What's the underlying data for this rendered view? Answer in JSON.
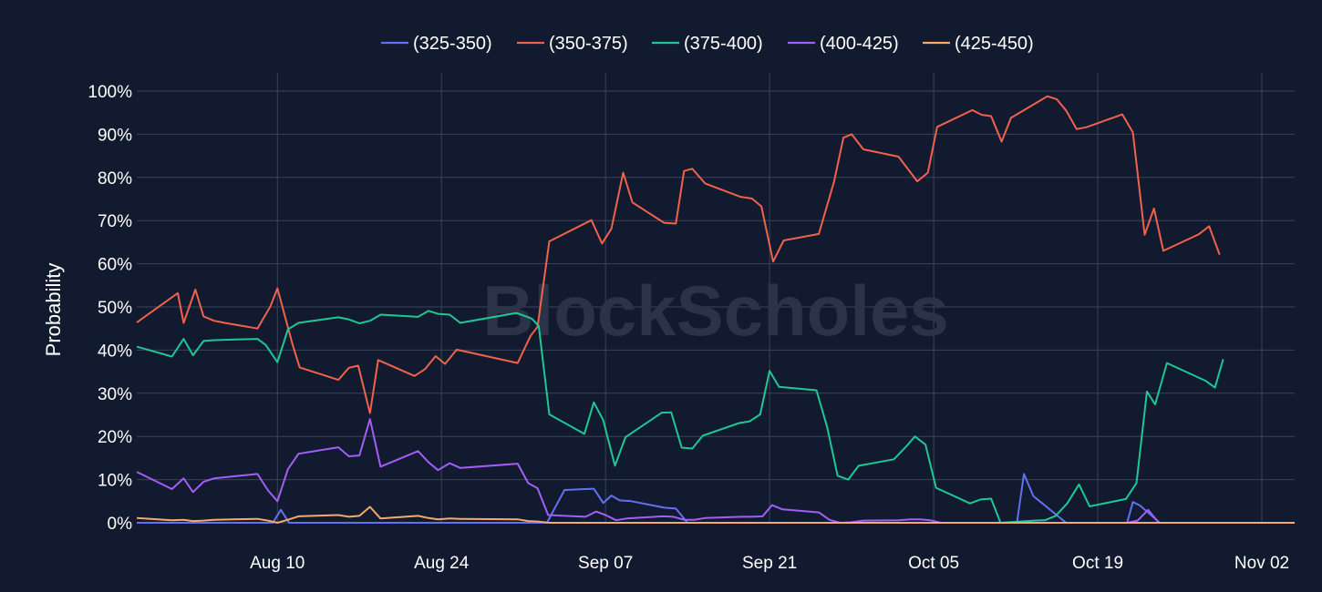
{
  "chart_data": {
    "type": "line",
    "ylabel": "Probability",
    "ylim": [
      0,
      100
    ],
    "y_tick_values": [
      0,
      10,
      20,
      30,
      40,
      50,
      60,
      70,
      80,
      90,
      100
    ],
    "y_tick_labels": [
      "0%",
      "10%",
      "20%",
      "30%",
      "40%",
      "50%",
      "60%",
      "70%",
      "80%",
      "90%",
      "100%"
    ],
    "x_range": [
      "Jul 29",
      "Nov 05"
    ],
    "x_ticks": [
      {
        "label": "Aug 10",
        "day": 12
      },
      {
        "label": "Aug 24",
        "day": 26
      },
      {
        "label": "Sep 07",
        "day": 40
      },
      {
        "label": "Sep 21",
        "day": 54
      },
      {
        "label": "Oct 05",
        "day": 68
      },
      {
        "label": "Oct 19",
        "day": 82
      },
      {
        "label": "Nov 02",
        "day": 96
      }
    ],
    "x_min_day": 0,
    "x_max_day": 98.8,
    "legend_position": "top-center",
    "watermark": "BlockScholes",
    "series": [
      {
        "name": "(325-350)",
        "color": "#6370f0",
        "points": [
          [
            0,
            0
          ],
          [
            11.6,
            0
          ],
          [
            12.3,
            3.0
          ],
          [
            13.0,
            0
          ],
          [
            26,
            0
          ],
          [
            34,
            0
          ],
          [
            35,
            0
          ],
          [
            36.5,
            7.6
          ],
          [
            39.0,
            7.9
          ],
          [
            39.8,
            4.6
          ],
          [
            40.5,
            6.3
          ],
          [
            41.2,
            5.2
          ],
          [
            42.2,
            5.0
          ],
          [
            45.0,
            3.5
          ],
          [
            46.0,
            3.3
          ],
          [
            47,
            0
          ],
          [
            74,
            0
          ],
          [
            75.1,
            0
          ],
          [
            75.7,
            11.3
          ],
          [
            76.5,
            6.2
          ],
          [
            79.3,
            0
          ],
          [
            82.6,
            0
          ],
          [
            83.6,
            0
          ],
          [
            84.5,
            0
          ],
          [
            85.0,
            4.8
          ],
          [
            85.6,
            4.0
          ],
          [
            87.3,
            0
          ],
          [
            98.8,
            0
          ]
        ]
      },
      {
        "name": "(350-375)",
        "color": "#f0624b",
        "points": [
          [
            0,
            46.4
          ],
          [
            3.5,
            53.2
          ],
          [
            4.0,
            46.3
          ],
          [
            5.0,
            54.0
          ],
          [
            5.7,
            47.8
          ],
          [
            6.6,
            46.8
          ],
          [
            7.5,
            46.3
          ],
          [
            10.3,
            45.0
          ],
          [
            11.4,
            50.1
          ],
          [
            12.0,
            54.3
          ],
          [
            13.3,
            41.2
          ],
          [
            13.9,
            36.0
          ],
          [
            17.2,
            33.1
          ],
          [
            18.1,
            35.9
          ],
          [
            18.9,
            36.4
          ],
          [
            19.9,
            25.4
          ],
          [
            20.6,
            37.7
          ],
          [
            23.7,
            34.0
          ],
          [
            24.6,
            35.6
          ],
          [
            25.5,
            38.6
          ],
          [
            26.3,
            36.8
          ],
          [
            27.3,
            40.1
          ],
          [
            32.5,
            37.0
          ],
          [
            33.6,
            43.3
          ],
          [
            34.2,
            45.4
          ],
          [
            35.2,
            65.2
          ],
          [
            38.8,
            70.1
          ],
          [
            39.7,
            64.7
          ],
          [
            40.5,
            68.1
          ],
          [
            41.5,
            81.1
          ],
          [
            42.3,
            74.2
          ],
          [
            45.0,
            69.5
          ],
          [
            46.0,
            69.3
          ],
          [
            46.7,
            81.5
          ],
          [
            47.4,
            82.0
          ],
          [
            48.5,
            78.6
          ],
          [
            51.5,
            75.5
          ],
          [
            52.5,
            75.1
          ],
          [
            53.3,
            73.3
          ],
          [
            54.3,
            60.5
          ],
          [
            55.2,
            65.4
          ],
          [
            58.2,
            66.9
          ],
          [
            59.5,
            79.0
          ],
          [
            60.3,
            89.2
          ],
          [
            61.0,
            90.0
          ],
          [
            62.0,
            86.5
          ],
          [
            65.0,
            84.8
          ],
          [
            66.6,
            79.1
          ],
          [
            67.5,
            81.1
          ],
          [
            68.3,
            91.7
          ],
          [
            71.3,
            95.6
          ],
          [
            72.1,
            94.5
          ],
          [
            72.9,
            94.2
          ],
          [
            73.8,
            88.3
          ],
          [
            74.6,
            93.8
          ],
          [
            77.7,
            98.8
          ],
          [
            78.5,
            98.1
          ],
          [
            79.3,
            95.5
          ],
          [
            80.2,
            91.2
          ],
          [
            81.0,
            91.6
          ],
          [
            84.1,
            94.6
          ],
          [
            85.0,
            90.4
          ],
          [
            86.0,
            66.7
          ],
          [
            86.8,
            72.8
          ],
          [
            87.6,
            63.0
          ],
          [
            90.6,
            66.8
          ],
          [
            91.5,
            68.7
          ],
          [
            92.4,
            62.1
          ]
        ]
      },
      {
        "name": "(375-400)",
        "color": "#1fc796",
        "points": [
          [
            0,
            40.8
          ],
          [
            3.0,
            38.5
          ],
          [
            4.0,
            42.6
          ],
          [
            4.8,
            38.8
          ],
          [
            5.7,
            42.1
          ],
          [
            6.6,
            42.3
          ],
          [
            10.3,
            42.6
          ],
          [
            11.0,
            41.2
          ],
          [
            12.0,
            37.2
          ],
          [
            12.9,
            44.8
          ],
          [
            13.8,
            46.3
          ],
          [
            17.2,
            47.6
          ],
          [
            18.1,
            47.1
          ],
          [
            19.0,
            46.2
          ],
          [
            19.9,
            46.8
          ],
          [
            20.8,
            48.2
          ],
          [
            24.0,
            47.7
          ],
          [
            24.9,
            49.1
          ],
          [
            25.7,
            48.4
          ],
          [
            26.7,
            48.2
          ],
          [
            27.6,
            46.3
          ],
          [
            32.4,
            48.6
          ],
          [
            33.7,
            47.3
          ],
          [
            34.3,
            45.6
          ],
          [
            35.2,
            25.1
          ],
          [
            38.2,
            20.6
          ],
          [
            39.0,
            27.9
          ],
          [
            39.8,
            23.8
          ],
          [
            40.8,
            13.2
          ],
          [
            41.7,
            19.8
          ],
          [
            44.8,
            25.5
          ],
          [
            45.6,
            25.6
          ],
          [
            46.5,
            17.4
          ],
          [
            47.4,
            17.2
          ],
          [
            48.3,
            20.2
          ],
          [
            51.4,
            23.1
          ],
          [
            52.3,
            23.5
          ],
          [
            53.2,
            25.1
          ],
          [
            54.0,
            35.2
          ],
          [
            54.8,
            31.5
          ],
          [
            58.0,
            30.7
          ],
          [
            58.9,
            22.3
          ],
          [
            59.8,
            10.9
          ],
          [
            60.7,
            10.0
          ],
          [
            61.6,
            13.2
          ],
          [
            64.6,
            14.7
          ],
          [
            65.6,
            17.5
          ],
          [
            66.4,
            20.0
          ],
          [
            67.3,
            18.1
          ],
          [
            68.2,
            8.1
          ],
          [
            71.1,
            4.5
          ],
          [
            72.0,
            5.4
          ],
          [
            72.9,
            5.6
          ],
          [
            73.7,
            0
          ],
          [
            76.6,
            0.5
          ],
          [
            77.5,
            0.6
          ],
          [
            78.4,
            1.6
          ],
          [
            79.4,
            4.5
          ],
          [
            80.4,
            8.9
          ],
          [
            81.3,
            3.8
          ],
          [
            84.4,
            5.5
          ],
          [
            85.3,
            9.2
          ],
          [
            86.2,
            30.4
          ],
          [
            86.9,
            27.4
          ],
          [
            87.9,
            37.0
          ],
          [
            91.2,
            32.9
          ],
          [
            92.0,
            31.3
          ],
          [
            92.7,
            37.9
          ]
        ]
      },
      {
        "name": "(400-425)",
        "color": "#a25ef6",
        "points": [
          [
            0,
            11.8
          ],
          [
            3.0,
            7.8
          ],
          [
            4.0,
            10.3
          ],
          [
            4.8,
            7.1
          ],
          [
            5.7,
            9.5
          ],
          [
            6.6,
            10.3
          ],
          [
            10.3,
            11.3
          ],
          [
            11.2,
            7.5
          ],
          [
            12.0,
            5.0
          ],
          [
            12.9,
            12.4
          ],
          [
            13.8,
            16.0
          ],
          [
            17.2,
            17.5
          ],
          [
            18.1,
            15.4
          ],
          [
            19.0,
            15.6
          ],
          [
            19.9,
            24.0
          ],
          [
            20.8,
            13.0
          ],
          [
            24.0,
            16.6
          ],
          [
            24.9,
            14.0
          ],
          [
            25.7,
            12.2
          ],
          [
            26.7,
            13.8
          ],
          [
            27.6,
            12.7
          ],
          [
            32.5,
            13.7
          ],
          [
            33.4,
            9.2
          ],
          [
            34.2,
            8.0
          ],
          [
            35.1,
            1.8
          ],
          [
            38.3,
            1.4
          ],
          [
            39.2,
            2.6
          ],
          [
            40.0,
            1.8
          ],
          [
            40.9,
            0.6
          ],
          [
            41.8,
            1.0
          ],
          [
            44.9,
            1.5
          ],
          [
            45.8,
            1.4
          ],
          [
            46.7,
            0.7
          ],
          [
            47.6,
            0.7
          ],
          [
            48.5,
            1.1
          ],
          [
            51.6,
            1.4
          ],
          [
            52.5,
            1.4
          ],
          [
            53.4,
            1.5
          ],
          [
            54.2,
            4.1
          ],
          [
            55.1,
            3.1
          ],
          [
            58.2,
            2.4
          ],
          [
            59.1,
            0.7
          ],
          [
            60.0,
            0
          ],
          [
            60.9,
            0.1
          ],
          [
            62.0,
            0.5
          ],
          [
            65.0,
            0.6
          ],
          [
            66.0,
            0.8
          ],
          [
            66.8,
            0.8
          ],
          [
            67.7,
            0.6
          ],
          [
            68.6,
            0
          ],
          [
            84.5,
            0
          ],
          [
            85.4,
            0.5
          ],
          [
            86.3,
            3.0
          ],
          [
            87.2,
            0
          ],
          [
            98.8,
            0
          ]
        ]
      },
      {
        "name": "(425-450)",
        "color": "#f5a96c",
        "points": [
          [
            0,
            1.1
          ],
          [
            3.0,
            0.6
          ],
          [
            4.0,
            0.7
          ],
          [
            4.8,
            0.4
          ],
          [
            5.7,
            0.5
          ],
          [
            6.6,
            0.7
          ],
          [
            10.3,
            0.9
          ],
          [
            11.2,
            0.5
          ],
          [
            12.0,
            0
          ],
          [
            12.9,
            0.7
          ],
          [
            13.8,
            1.5
          ],
          [
            17.2,
            1.8
          ],
          [
            18.1,
            1.4
          ],
          [
            19.0,
            1.6
          ],
          [
            19.9,
            3.7
          ],
          [
            20.8,
            1.0
          ],
          [
            24.0,
            1.6
          ],
          [
            24.9,
            1.1
          ],
          [
            25.7,
            0.8
          ],
          [
            26.7,
            1.0
          ],
          [
            27.6,
            0.9
          ],
          [
            32.5,
            0.8
          ],
          [
            33.4,
            0.4
          ],
          [
            34.2,
            0.3
          ],
          [
            35.2,
            0
          ],
          [
            98.8,
            0
          ]
        ]
      }
    ]
  }
}
